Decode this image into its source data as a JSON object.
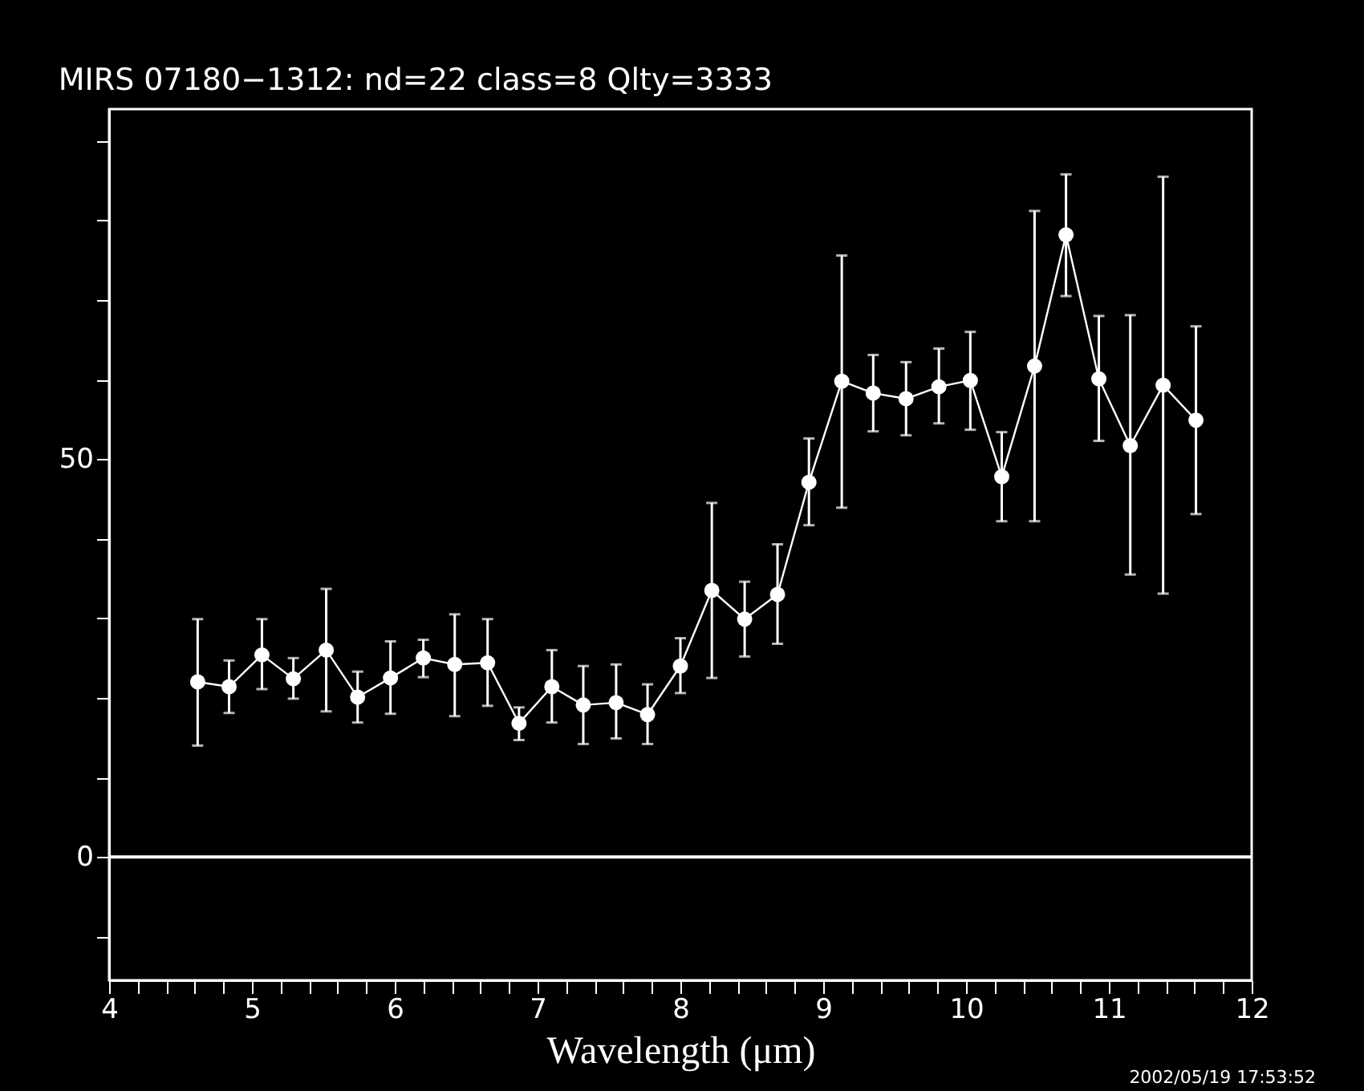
{
  "chart_data": {
    "type": "line",
    "title": "MIRS 07180−1312:    nd=22   class=8   Qlty=3333",
    "xlabel": "Wavelength (μm)",
    "x": [
      4.62,
      4.84,
      5.07,
      5.29,
      5.52,
      5.74,
      5.97,
      6.2,
      6.42,
      6.65,
      6.87,
      7.1,
      7.32,
      7.55,
      7.77,
      8.0,
      8.22,
      8.45,
      8.68,
      8.9,
      9.13,
      9.35,
      9.58,
      9.81,
      10.03,
      10.25,
      10.48,
      10.7,
      10.93,
      11.15,
      11.38,
      11.61
    ],
    "series": [
      {
        "color": "#ffffff",
        "values": [
          22.0,
          21.4,
          25.4,
          22.4,
          26.0,
          20.1,
          22.5,
          25.0,
          24.2,
          24.4,
          16.8,
          21.4,
          19.1,
          19.4,
          17.9,
          24.0,
          33.5,
          29.9,
          33.0,
          47.1,
          59.8,
          58.3,
          57.6,
          59.1,
          59.9,
          47.8,
          61.7,
          78.2,
          60.1,
          51.7,
          59.3,
          54.9
        ],
        "errors": [
          [
            14.0,
            29.9
          ],
          [
            18.1,
            24.7
          ],
          [
            21.1,
            29.9
          ],
          [
            19.9,
            25.0
          ],
          [
            18.3,
            33.7
          ],
          [
            16.9,
            23.3
          ],
          [
            18.0,
            27.1
          ],
          [
            22.6,
            27.3
          ],
          [
            17.7,
            30.5
          ],
          [
            19.0,
            29.9
          ],
          [
            14.7,
            18.8
          ],
          [
            16.9,
            26.0
          ],
          [
            14.2,
            24.0
          ],
          [
            14.9,
            24.2
          ],
          [
            14.2,
            21.7
          ],
          [
            20.6,
            27.5
          ],
          [
            22.5,
            44.5
          ],
          [
            25.2,
            34.6
          ],
          [
            26.8,
            39.3
          ],
          [
            41.7,
            52.6
          ],
          [
            43.9,
            75.6
          ],
          [
            53.5,
            63.1
          ],
          [
            53.0,
            62.2
          ],
          [
            54.5,
            63.9
          ],
          [
            53.7,
            66.0
          ],
          [
            42.2,
            53.4
          ],
          [
            42.2,
            81.2
          ],
          [
            70.5,
            85.8
          ],
          [
            52.3,
            68.0
          ],
          [
            35.5,
            68.1
          ],
          [
            33.1,
            85.5
          ],
          [
            43.1,
            66.7
          ]
        ]
      }
    ],
    "marker": "circle",
    "line_style": "solid",
    "grid": false,
    "xlim": [
      4,
      12
    ],
    "ylim": [
      -15.5,
      94
    ],
    "xticks": [
      4,
      {
        "value": 4.2,
        "label": null
      },
      {
        "value": 4.4,
        "label": null
      },
      {
        "value": 4.6,
        "label": null
      },
      {
        "value": 4.8,
        "label": null
      },
      5,
      {
        "value": 5.2,
        "label": null
      },
      {
        "value": 5.4,
        "label": null
      },
      {
        "value": 5.6,
        "label": null
      },
      {
        "value": 5.8,
        "label": null
      },
      6,
      {
        "value": 6.2,
        "label": null
      },
      {
        "value": 6.4,
        "label": null
      },
      {
        "value": 6.6,
        "label": null
      },
      {
        "value": 6.8,
        "label": null
      },
      7,
      {
        "value": 7.2,
        "label": null
      },
      {
        "value": 7.4,
        "label": null
      },
      {
        "value": 7.6,
        "label": null
      },
      {
        "value": 7.8,
        "label": null
      },
      8,
      {
        "value": 8.2,
        "label": null
      },
      {
        "value": 8.4,
        "label": null
      },
      {
        "value": 8.6,
        "label": null
      },
      {
        "value": 8.8,
        "label": null
      },
      9,
      {
        "value": 9.2,
        "label": null
      },
      {
        "value": 9.4,
        "label": null
      },
      {
        "value": 9.6,
        "label": null
      },
      {
        "value": 9.8,
        "label": null
      },
      10,
      {
        "value": 10.2,
        "label": null
      },
      {
        "value": 10.4,
        "label": null
      },
      {
        "value": 10.6,
        "label": null
      },
      {
        "value": 10.8,
        "label": null
      },
      11,
      {
        "value": 11.2,
        "label": null
      },
      {
        "value": 11.4,
        "label": null
      },
      {
        "value": 11.6,
        "label": null
      },
      {
        "value": 11.8,
        "label": null
      },
      12
    ],
    "yticks": [
      {
        "value": -10,
        "label": null
      },
      0,
      {
        "value": 10,
        "label": null
      },
      {
        "value": 20,
        "label": null
      },
      {
        "value": 30,
        "label": null
      },
      {
        "value": 40,
        "label": null
      },
      50,
      {
        "value": 60,
        "label": null
      },
      {
        "value": 70,
        "label": null
      },
      {
        "value": 80,
        "label": null
      },
      {
        "value": 90,
        "label": null
      }
    ],
    "ref_lines": [
      {
        "axis": "y",
        "value": 0,
        "color": "#ffffff"
      }
    ],
    "annotations": [
      "2002/05/19 17:53:52"
    ]
  }
}
